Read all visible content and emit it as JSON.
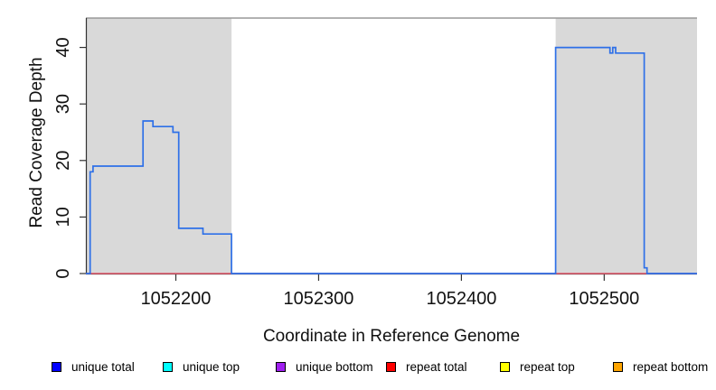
{
  "chart_data": {
    "type": "line",
    "subtype": "step-coverage",
    "title": "",
    "xlabel": "Coordinate in Reference Genome",
    "ylabel": "Read Coverage Depth",
    "xlim": [
      1052137,
      1052565
    ],
    "ylim": [
      0,
      45.2
    ],
    "x_ticks": [
      1052200,
      1052300,
      1052400,
      1052500
    ],
    "y_ticks": [
      0,
      10,
      20,
      30,
      40
    ],
    "grid": false,
    "legend_position": "bottom",
    "shaded_regions": [
      {
        "from": 1052137,
        "to": 1052239
      },
      {
        "from": 1052466,
        "to": 1052565
      }
    ],
    "colors": {
      "region_fill": "#d9d9d9",
      "top_border": "#999999",
      "axis": "#333333",
      "text": "#111111",
      "unique_total_line": "#2e70e8",
      "repeat_total_line": "#e05468"
    },
    "series": [
      {
        "name": "unique total",
        "line_color": "#2e70e8",
        "segments": [
          [
            1052137,
            1052140,
            0
          ],
          [
            1052140,
            1052142,
            18
          ],
          [
            1052142,
            1052177,
            19
          ],
          [
            1052177,
            1052184,
            27
          ],
          [
            1052184,
            1052198,
            26
          ],
          [
            1052198,
            1052202,
            25
          ],
          [
            1052202,
            1052219,
            8
          ],
          [
            1052219,
            1052239,
            7
          ],
          [
            1052239,
            1052466,
            0
          ],
          [
            1052466,
            1052504,
            40
          ],
          [
            1052504,
            1052506,
            39
          ],
          [
            1052506,
            1052508,
            40
          ],
          [
            1052508,
            1052528,
            39
          ],
          [
            1052528,
            1052530,
            1
          ],
          [
            1052530,
            1052565,
            0
          ]
        ]
      },
      {
        "name": "repeat total",
        "line_color": "#e05468",
        "segments": [
          [
            1052137,
            1052565,
            0
          ]
        ]
      }
    ],
    "legend": [
      {
        "label": "unique total",
        "color": "#0000ff"
      },
      {
        "label": "unique top",
        "color": "#00ffff"
      },
      {
        "label": "unique bottom",
        "color": "#a020f0"
      },
      {
        "label": "repeat total",
        "color": "#ff0000"
      },
      {
        "label": "repeat top",
        "color": "#ffff00"
      },
      {
        "label": "repeat bottom",
        "color": "#ffa500"
      }
    ]
  }
}
